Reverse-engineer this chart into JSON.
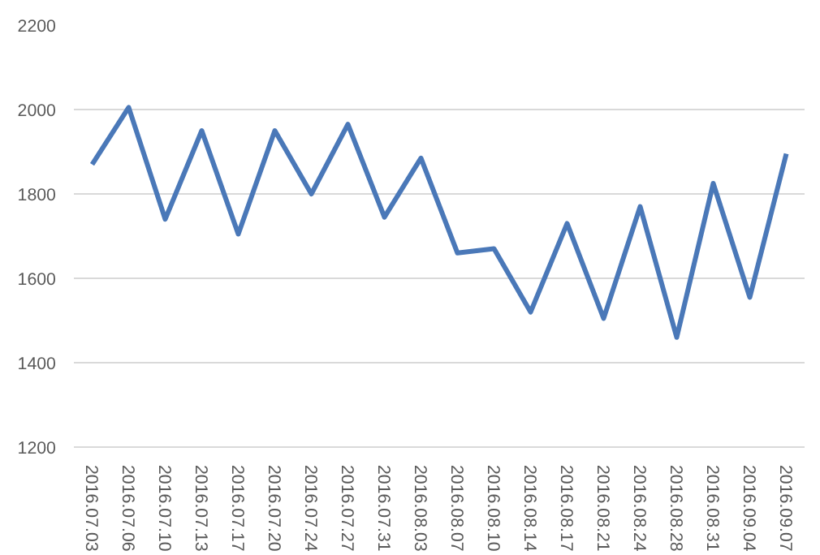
{
  "chart_data": {
    "type": "line",
    "categories": [
      "2016.07.03",
      "2016.07.06",
      "2016.07.10",
      "2016.07.13",
      "2016.07.17",
      "2016.07.20",
      "2016.07.24",
      "2016.07.27",
      "2016.07.31",
      "2016.08.03",
      "2016.08.07",
      "2016.08.10",
      "2016.08.14",
      "2016.08.17",
      "2016.08.21",
      "2016.08.24",
      "2016.08.28",
      "2016.08.31",
      "2016.09.04",
      "2016.09.07"
    ],
    "series": [
      {
        "color": "#4a78b8",
        "values": [
          1870,
          2005,
          1740,
          1950,
          1705,
          1950,
          1800,
          1965,
          1745,
          1885,
          1660,
          1670,
          1520,
          1730,
          1505,
          1770,
          1460,
          1825,
          1555,
          1895
        ]
      }
    ],
    "ylim": [
      1200,
      2200
    ],
    "yticks": [
      1200,
      1400,
      1600,
      1800,
      2000,
      2200
    ],
    "grid": "y",
    "marker": "none",
    "line_style": "solid"
  }
}
